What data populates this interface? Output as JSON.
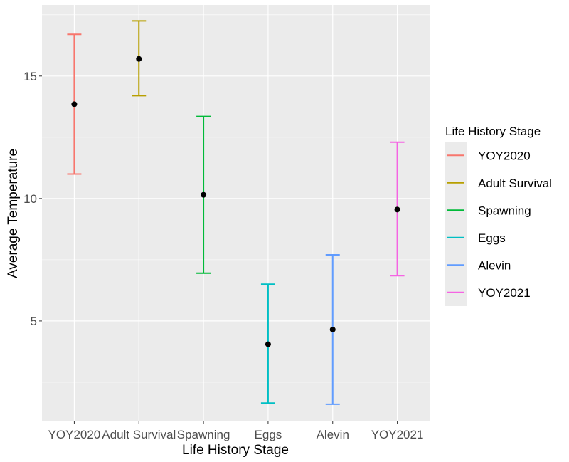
{
  "chart_data": {
    "type": "errorbar",
    "title": "",
    "xlabel": "Life History Stage",
    "ylabel": "Average Temperature",
    "categories": [
      "YOY2020",
      "Adult Survival",
      "Spawning",
      "Eggs",
      "Alevin",
      "YOY2021"
    ],
    "points": [
      {
        "category": "YOY2020",
        "mean": 13.85,
        "lower": 11.0,
        "upper": 16.7,
        "color": "#F8766D"
      },
      {
        "category": "Adult Survival",
        "mean": 15.7,
        "lower": 14.2,
        "upper": 17.25,
        "color": "#B79F00"
      },
      {
        "category": "Spawning",
        "mean": 10.15,
        "lower": 6.95,
        "upper": 13.35,
        "color": "#00BA38"
      },
      {
        "category": "Eggs",
        "mean": 4.05,
        "lower": 1.65,
        "upper": 6.5,
        "color": "#00BFC4"
      },
      {
        "category": "Alevin",
        "mean": 4.65,
        "lower": 1.6,
        "upper": 7.7,
        "color": "#619CFF"
      },
      {
        "category": "YOY2021",
        "mean": 9.55,
        "lower": 6.85,
        "upper": 12.3,
        "color": "#F564E3"
      }
    ],
    "yticks": [
      5,
      10,
      15
    ],
    "ylim": [
      0.9,
      17.9
    ],
    "grid": true,
    "legend": {
      "title": "Life History Stage",
      "position": "right",
      "entries": [
        "YOY2020",
        "Adult Survival",
        "Spawning",
        "Eggs",
        "Alevin",
        "YOY2021"
      ]
    }
  }
}
